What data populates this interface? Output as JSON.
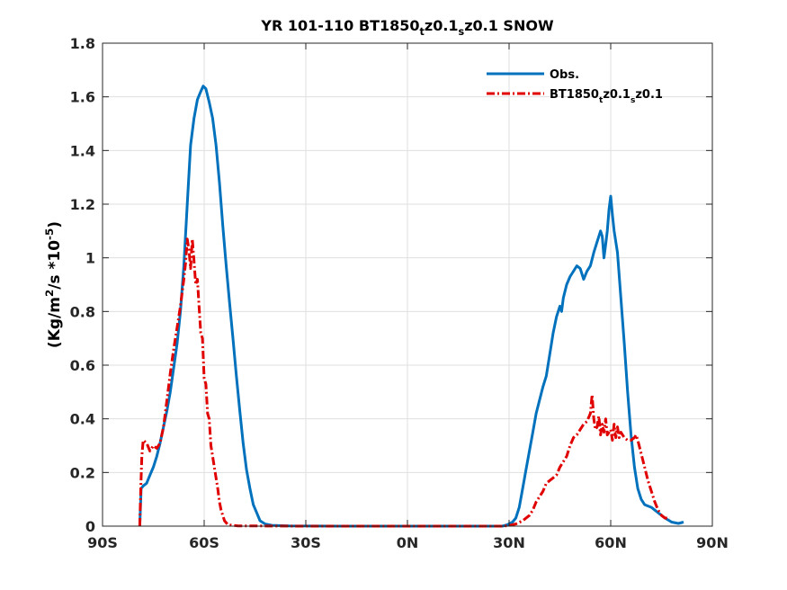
{
  "chart_data": {
    "type": "line",
    "title": {
      "parts": [
        {
          "t": "YR 101-110 BT1850",
          "sub": false
        },
        {
          "t": "t",
          "sub": true
        },
        {
          "t": "z0.1",
          "sub": false
        },
        {
          "t": "s",
          "sub": true
        },
        {
          "t": "z0.1 SNOW",
          "sub": false
        }
      ]
    },
    "xlabel": "",
    "ylabel": {
      "parts": [
        {
          "t": "(Kg/m",
          "sup": false
        },
        {
          "t": "2",
          "sup": true
        },
        {
          "t": "/s *10",
          "sup": false
        },
        {
          "t": "-5",
          "sup": true
        },
        {
          "t": ")",
          "sup": false
        }
      ]
    },
    "xlim": [
      -90,
      90
    ],
    "ylim": [
      0,
      1.8
    ],
    "x_ticks": [
      {
        "value": -90,
        "label": "90S"
      },
      {
        "value": -60,
        "label": "60S"
      },
      {
        "value": -30,
        "label": "30S"
      },
      {
        "value": 0,
        "label": "0N"
      },
      {
        "value": 30,
        "label": "30N"
      },
      {
        "value": 60,
        "label": "60N"
      },
      {
        "value": 90,
        "label": "90N"
      }
    ],
    "y_ticks": [
      {
        "value": 0,
        "label": "0"
      },
      {
        "value": 0.2,
        "label": "0.2"
      },
      {
        "value": 0.4,
        "label": "0.4"
      },
      {
        "value": 0.6,
        "label": "0.6"
      },
      {
        "value": 0.8,
        "label": "0.8"
      },
      {
        "value": 1.0,
        "label": "1"
      },
      {
        "value": 1.2,
        "label": "1.2"
      },
      {
        "value": 1.4,
        "label": "1.4"
      },
      {
        "value": 1.6,
        "label": "1.6"
      },
      {
        "value": 1.8,
        "label": "1.8"
      }
    ],
    "grid": true,
    "legend_position": "top-right",
    "series": [
      {
        "name": "Obs.",
        "legend_parts": [
          {
            "t": "Obs.",
            "sub": false
          }
        ],
        "color": "#0072bd",
        "style": "solid",
        "points": [
          [
            -79.0,
            0.0
          ],
          [
            -78.6,
            0.14
          ],
          [
            -78.0,
            0.15
          ],
          [
            -77.0,
            0.16
          ],
          [
            -76.0,
            0.19
          ],
          [
            -75.0,
            0.22
          ],
          [
            -74.0,
            0.26
          ],
          [
            -73.0,
            0.31
          ],
          [
            -72.0,
            0.37
          ],
          [
            -71.0,
            0.43
          ],
          [
            -70.0,
            0.5
          ],
          [
            -69.0,
            0.59
          ],
          [
            -68.0,
            0.68
          ],
          [
            -67.0,
            0.8
          ],
          [
            -66.0,
            0.97
          ],
          [
            -65.0,
            1.2
          ],
          [
            -64.0,
            1.42
          ],
          [
            -63.0,
            1.52
          ],
          [
            -62.0,
            1.59
          ],
          [
            -61.0,
            1.62
          ],
          [
            -60.3,
            1.64
          ],
          [
            -59.5,
            1.63
          ],
          [
            -58.5,
            1.58
          ],
          [
            -57.5,
            1.52
          ],
          [
            -56.5,
            1.42
          ],
          [
            -55.5,
            1.28
          ],
          [
            -54.5,
            1.12
          ],
          [
            -53.5,
            0.97
          ],
          [
            -52.5,
            0.83
          ],
          [
            -51.5,
            0.7
          ],
          [
            -50.5,
            0.56
          ],
          [
            -49.5,
            0.43
          ],
          [
            -48.5,
            0.31
          ],
          [
            -47.5,
            0.21
          ],
          [
            -46.5,
            0.14
          ],
          [
            -45.5,
            0.08
          ],
          [
            -44.5,
            0.05
          ],
          [
            -43.5,
            0.02
          ],
          [
            -42.0,
            0.008
          ],
          [
            -40.0,
            0.003
          ],
          [
            -35.0,
            0.001
          ],
          [
            -20.0,
            0.0
          ],
          [
            0.0,
            0.0
          ],
          [
            20.0,
            0.0
          ],
          [
            28.0,
            0.0
          ],
          [
            29.5,
            0.005
          ],
          [
            31.0,
            0.015
          ],
          [
            32.0,
            0.03
          ],
          [
            33.0,
            0.07
          ],
          [
            34.0,
            0.14
          ],
          [
            35.0,
            0.21
          ],
          [
            36.0,
            0.28
          ],
          [
            37.0,
            0.35
          ],
          [
            38.0,
            0.42
          ],
          [
            39.0,
            0.47
          ],
          [
            40.0,
            0.52
          ],
          [
            41.0,
            0.56
          ],
          [
            42.0,
            0.64
          ],
          [
            43.0,
            0.72
          ],
          [
            44.0,
            0.78
          ],
          [
            45.0,
            0.82
          ],
          [
            45.5,
            0.8
          ],
          [
            46.0,
            0.85
          ],
          [
            47.0,
            0.9
          ],
          [
            48.0,
            0.93
          ],
          [
            49.0,
            0.95
          ],
          [
            50.0,
            0.97
          ],
          [
            51.0,
            0.96
          ],
          [
            52.0,
            0.92
          ],
          [
            53.0,
            0.95
          ],
          [
            54.0,
            0.97
          ],
          [
            55.0,
            1.02
          ],
          [
            56.0,
            1.06
          ],
          [
            57.0,
            1.1
          ],
          [
            57.5,
            1.08
          ],
          [
            58.0,
            1.0
          ],
          [
            58.5,
            1.05
          ],
          [
            59.0,
            1.1
          ],
          [
            59.5,
            1.18
          ],
          [
            60.0,
            1.23
          ],
          [
            60.5,
            1.16
          ],
          [
            61.0,
            1.1
          ],
          [
            62.0,
            1.02
          ],
          [
            63.0,
            0.85
          ],
          [
            64.0,
            0.68
          ],
          [
            65.0,
            0.5
          ],
          [
            66.0,
            0.34
          ],
          [
            67.0,
            0.22
          ],
          [
            68.0,
            0.14
          ],
          [
            69.0,
            0.1
          ],
          [
            70.0,
            0.08
          ],
          [
            72.0,
            0.07
          ],
          [
            74.0,
            0.05
          ],
          [
            76.0,
            0.03
          ],
          [
            78.0,
            0.015
          ],
          [
            80.0,
            0.01
          ],
          [
            81.5,
            0.015
          ]
        ]
      },
      {
        "name": "BT1850_tz0.1_sz0.1",
        "legend_parts": [
          {
            "t": "BT1850",
            "sub": false
          },
          {
            "t": "t",
            "sub": true
          },
          {
            "t": "z0.1",
            "sub": false
          },
          {
            "t": "s",
            "sub": true
          },
          {
            "t": "z0.1",
            "sub": false
          }
        ],
        "color": "#e00000",
        "style": "dashdot",
        "points": [
          [
            -79.0,
            0.0
          ],
          [
            -78.7,
            0.15
          ],
          [
            -78.4,
            0.26
          ],
          [
            -78.0,
            0.32
          ],
          [
            -77.0,
            0.31
          ],
          [
            -76.0,
            0.28
          ],
          [
            -75.0,
            0.3
          ],
          [
            -74.0,
            0.29
          ],
          [
            -73.0,
            0.31
          ],
          [
            -72.0,
            0.37
          ],
          [
            -71.0,
            0.47
          ],
          [
            -70.0,
            0.57
          ],
          [
            -69.0,
            0.66
          ],
          [
            -68.0,
            0.74
          ],
          [
            -67.0,
            0.82
          ],
          [
            -66.0,
            0.92
          ],
          [
            -65.5,
            0.98
          ],
          [
            -65.0,
            1.07
          ],
          [
            -64.5,
            1.03
          ],
          [
            -64.0,
            0.96
          ],
          [
            -63.5,
            1.07
          ],
          [
            -63.0,
            0.99
          ],
          [
            -62.5,
            0.9
          ],
          [
            -62.0,
            0.92
          ],
          [
            -61.5,
            0.82
          ],
          [
            -61.0,
            0.72
          ],
          [
            -60.5,
            0.7
          ],
          [
            -60.0,
            0.55
          ],
          [
            -59.5,
            0.53
          ],
          [
            -59.0,
            0.42
          ],
          [
            -58.5,
            0.4
          ],
          [
            -58.0,
            0.3
          ],
          [
            -57.5,
            0.26
          ],
          [
            -57.0,
            0.22
          ],
          [
            -56.5,
            0.18
          ],
          [
            -56.0,
            0.14
          ],
          [
            -55.5,
            0.09
          ],
          [
            -55.0,
            0.06
          ],
          [
            -54.5,
            0.04
          ],
          [
            -54.0,
            0.02
          ],
          [
            -53.0,
            0.005
          ],
          [
            -50.0,
            0.001
          ],
          [
            -30.0,
            0.0
          ],
          [
            0.0,
            0.0
          ],
          [
            28.0,
            0.0
          ],
          [
            30.0,
            0.002
          ],
          [
            32.0,
            0.008
          ],
          [
            34.0,
            0.02
          ],
          [
            36.0,
            0.04
          ],
          [
            37.0,
            0.06
          ],
          [
            38.0,
            0.09
          ],
          [
            39.0,
            0.11
          ],
          [
            40.0,
            0.13
          ],
          [
            41.0,
            0.16
          ],
          [
            42.0,
            0.17
          ],
          [
            43.0,
            0.18
          ],
          [
            44.0,
            0.19
          ],
          [
            45.0,
            0.22
          ],
          [
            46.0,
            0.24
          ],
          [
            47.0,
            0.26
          ],
          [
            48.0,
            0.3
          ],
          [
            49.0,
            0.33
          ],
          [
            50.0,
            0.34
          ],
          [
            51.0,
            0.36
          ],
          [
            52.0,
            0.38
          ],
          [
            53.0,
            0.39
          ],
          [
            54.0,
            0.42
          ],
          [
            54.5,
            0.49
          ],
          [
            55.0,
            0.4
          ],
          [
            55.5,
            0.36
          ],
          [
            56.0,
            0.37
          ],
          [
            56.5,
            0.41
          ],
          [
            57.0,
            0.34
          ],
          [
            57.5,
            0.38
          ],
          [
            58.0,
            0.35
          ],
          [
            58.5,
            0.4
          ],
          [
            59.0,
            0.34
          ],
          [
            60.0,
            0.36
          ],
          [
            60.5,
            0.32
          ],
          [
            61.0,
            0.38
          ],
          [
            61.5,
            0.33
          ],
          [
            62.0,
            0.37
          ],
          [
            62.5,
            0.33
          ],
          [
            63.0,
            0.35
          ],
          [
            64.0,
            0.33
          ],
          [
            65.0,
            0.32
          ],
          [
            66.0,
            0.32
          ],
          [
            67.0,
            0.33
          ],
          [
            67.5,
            0.34
          ],
          [
            68.0,
            0.32
          ],
          [
            69.0,
            0.27
          ],
          [
            70.0,
            0.22
          ],
          [
            71.0,
            0.17
          ],
          [
            72.0,
            0.13
          ],
          [
            73.0,
            0.09
          ],
          [
            74.0,
            0.06
          ],
          [
            75.0,
            0.04
          ],
          [
            76.0,
            0.03
          ],
          [
            77.5,
            0.03
          ]
        ]
      }
    ]
  }
}
